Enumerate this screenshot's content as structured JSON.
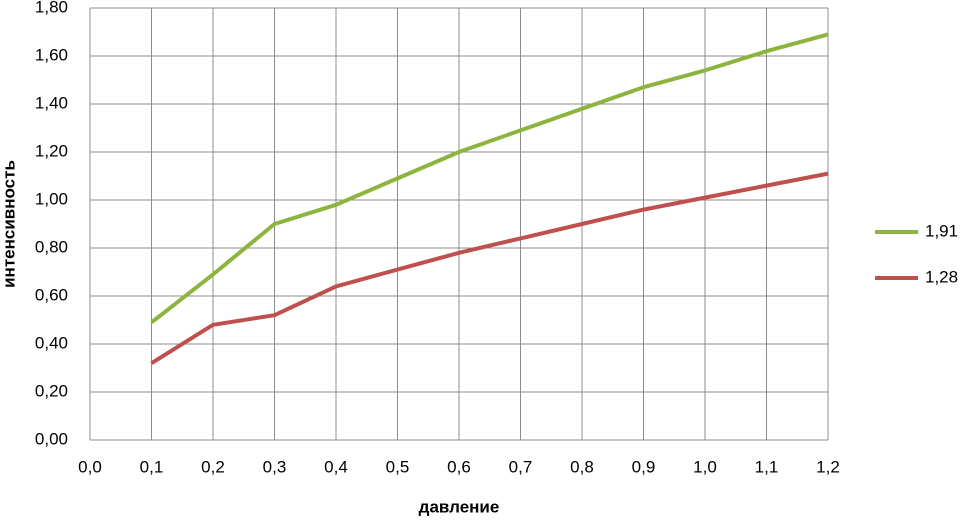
{
  "chart_data": {
    "type": "line",
    "x_label": "давление",
    "y_label": "интенсивность",
    "x": [
      0.1,
      0.2,
      0.3,
      0.4,
      0.5,
      0.6,
      0.7,
      0.8,
      0.9,
      1.0,
      1.1,
      1.2
    ],
    "series": [
      {
        "name": "1,91",
        "color": "#8db43e",
        "values": [
          0.49,
          0.69,
          0.9,
          0.98,
          1.09,
          1.2,
          1.29,
          1.38,
          1.47,
          1.54,
          1.62,
          1.69
        ]
      },
      {
        "name": "1,28",
        "color": "#c0504d",
        "values": [
          0.32,
          0.48,
          0.52,
          0.64,
          0.71,
          0.78,
          0.84,
          0.9,
          0.96,
          1.01,
          1.06,
          1.11
        ]
      }
    ],
    "xlim": [
      0,
      1.2
    ],
    "xticks": [
      {
        "value": 0,
        "label": "0,0"
      },
      {
        "value": 0.1,
        "label": "0,1"
      },
      {
        "value": 0.2,
        "label": "0,2"
      },
      {
        "value": 0.3,
        "label": "0,3"
      },
      {
        "value": 0.4,
        "label": "0,4"
      },
      {
        "value": 0.5,
        "label": "0,5"
      },
      {
        "value": 0.6,
        "label": "0,6"
      },
      {
        "value": 0.7,
        "label": "0,7"
      },
      {
        "value": 0.8,
        "label": "0,8"
      },
      {
        "value": 0.9,
        "label": "0,9"
      },
      {
        "value": 1.0,
        "label": "1,0"
      },
      {
        "value": 1.1,
        "label": "1,1"
      },
      {
        "value": 1.2,
        "label": "1,2"
      }
    ],
    "ylim": [
      0,
      1.8
    ],
    "yticks": [
      {
        "value": 0,
        "label": "0,00"
      },
      {
        "value": 0.2,
        "label": "0,20"
      },
      {
        "value": 0.4,
        "label": "0,40"
      },
      {
        "value": 0.6,
        "label": "0,60"
      },
      {
        "value": 0.8,
        "label": "0,80"
      },
      {
        "value": 1.0,
        "label": "1,00"
      },
      {
        "value": 1.2,
        "label": "1,20"
      },
      {
        "value": 1.4,
        "label": "1,40"
      },
      {
        "value": 1.6,
        "label": "1,60"
      },
      {
        "value": 1.8,
        "label": "1,80"
      }
    ],
    "grid": true,
    "legend": "right"
  }
}
